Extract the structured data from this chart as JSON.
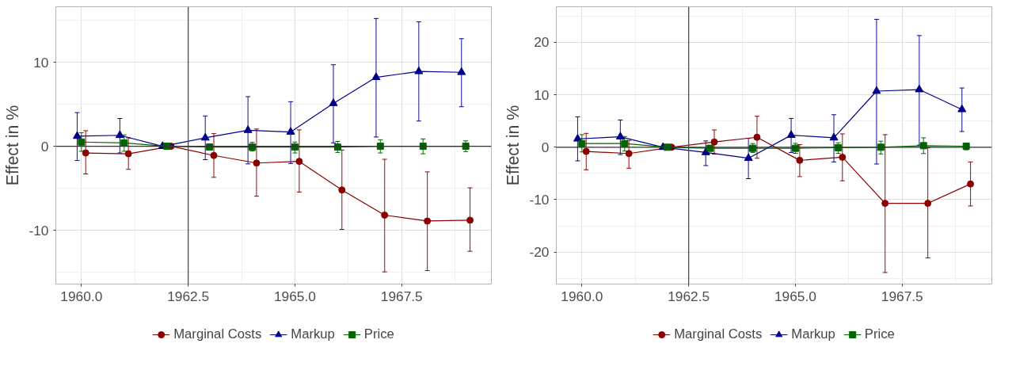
{
  "chart_data": [
    {
      "type": "line",
      "ylabel": "Effect in %",
      "xlim": [
        1959.4,
        1969.6
      ],
      "ylim": [
        -16.4,
        16.6
      ],
      "xticks": [
        {
          "value": 1960,
          "label": "1960.0"
        },
        {
          "value": 1962.5,
          "label": "1962.5"
        },
        {
          "value": 1965,
          "label": "1965.0"
        },
        {
          "value": 1967.5,
          "label": "1967.5"
        }
      ],
      "yticks": [
        -10,
        0,
        10
      ],
      "grid": true,
      "legend": "bottom",
      "line_style": "solid",
      "ref_lines": [
        {
          "axis": "x",
          "value": 1962.5,
          "color": "#4d4d4d"
        },
        {
          "axis": "y",
          "value": 0,
          "color": "#333333"
        }
      ],
      "series": [
        {
          "name": "Marginal Costs",
          "color": "#8b0000",
          "marker": "circle",
          "x": [
            1960.1,
            1961.1,
            1962.1,
            1963.1,
            1964.1,
            1965.1,
            1966.1,
            1967.1,
            1968.1,
            1969.1
          ],
          "values": [
            -0.8,
            -0.9,
            0,
            -1.1,
            -2.0,
            -1.8,
            -5.2,
            -8.2,
            -8.9,
            -8.8
          ],
          "errors": [
            [
              -3.3,
              1.85
            ],
            [
              -2.75,
              1.0
            ],
            null,
            [
              -3.7,
              1.5
            ],
            [
              -5.95,
              2.05
            ],
            [
              -5.45,
              1.95
            ],
            [
              -9.9,
              -0.45
            ],
            [
              -14.95,
              -1.55
            ],
            [
              -14.8,
              -3.05
            ],
            [
              -12.5,
              -4.95
            ]
          ]
        },
        {
          "name": "Markup",
          "color": "#00008b",
          "marker": "triangle",
          "x": [
            1959.9,
            1960.9,
            1961.9,
            1962.9,
            1963.9,
            1964.9,
            1965.9,
            1966.9,
            1967.9,
            1968.9
          ],
          "values": [
            1.2,
            1.3,
            0,
            1.0,
            1.9,
            1.7,
            5.1,
            8.2,
            8.9,
            8.8
          ],
          "errors": [
            [
              -1.7,
              4.0
            ],
            [
              -0.8,
              3.3
            ],
            null,
            [
              -1.6,
              3.6
            ],
            [
              -2.1,
              5.9
            ],
            [
              -2.05,
              5.3
            ],
            [
              0.4,
              9.7
            ],
            [
              1.1,
              15.2
            ],
            [
              3.0,
              14.8
            ],
            [
              4.7,
              12.8
            ]
          ]
        },
        {
          "name": "Price",
          "color": "#006400",
          "marker": "square",
          "x": [
            1960,
            1961,
            1962,
            1963,
            1964,
            1965,
            1966,
            1967,
            1968,
            1969
          ],
          "values": [
            0.5,
            0.4,
            0,
            -0.1,
            -0.1,
            -0.1,
            -0.1,
            0,
            0,
            0
          ],
          "errors": [
            [
              -0.6,
              1.6
            ],
            [
              -0.6,
              1.35
            ],
            null,
            [
              -0.37,
              0.1
            ],
            [
              -0.57,
              0.47
            ],
            [
              -0.8,
              0.5
            ],
            [
              -0.74,
              0.57
            ],
            [
              -0.8,
              0.77
            ],
            [
              -0.9,
              0.87
            ],
            [
              -0.64,
              0.64
            ]
          ]
        }
      ]
    },
    {
      "type": "line",
      "ylabel": "Effect in %",
      "xlim": [
        1959.4,
        1969.6
      ],
      "ylim": [
        -26.1,
        26.8
      ],
      "xticks": [
        {
          "value": 1960,
          "label": "1960.0"
        },
        {
          "value": 1962.5,
          "label": "1962.5"
        },
        {
          "value": 1965,
          "label": "1965.0"
        },
        {
          "value": 1967.5,
          "label": "1967.5"
        }
      ],
      "yticks": [
        -20,
        -10,
        0,
        10,
        20
      ],
      "grid": true,
      "legend": "bottom",
      "line_style": "solid",
      "ref_lines": [
        {
          "axis": "x",
          "value": 1962.5,
          "color": "#4d4d4d"
        },
        {
          "axis": "y",
          "value": 0,
          "color": "#333333"
        }
      ],
      "series": [
        {
          "name": "Marginal Costs",
          "color": "#8b0000",
          "marker": "circle",
          "x": [
            1960.1,
            1961.1,
            1962.1,
            1963.1,
            1964.1,
            1965.1,
            1966.1,
            1967.1,
            1968.1,
            1969.1
          ],
          "values": [
            -0.8,
            -1.2,
            0,
            1.0,
            1.9,
            -2.5,
            -1.9,
            -10.7,
            -10.7,
            -7.0
          ],
          "errors": [
            [
              -4.3,
              2.65
            ],
            [
              -4.0,
              1.3
            ],
            null,
            [
              -1.3,
              3.3
            ],
            [
              -2.1,
              5.9
            ],
            [
              -5.6,
              0.5
            ],
            [
              -6.4,
              2.55
            ],
            [
              -23.9,
              2.4
            ],
            [
              -21.1,
              -0.1
            ],
            [
              -11.2,
              -2.8
            ]
          ]
        },
        {
          "name": "Markup",
          "color": "#00008b",
          "marker": "triangle",
          "x": [
            1959.9,
            1960.9,
            1961.9,
            1962.9,
            1963.9,
            1964.9,
            1965.9,
            1966.9,
            1967.9,
            1968.9
          ],
          "values": [
            1.6,
            2.0,
            0,
            -1.0,
            -2.1,
            2.3,
            1.8,
            10.7,
            11.0,
            7.2
          ],
          "errors": [
            [
              -2.6,
              5.8
            ],
            [
              -1.4,
              5.2
            ],
            null,
            [
              -3.5,
              1.2
            ],
            [
              -6.0,
              1.7
            ],
            [
              -1.0,
              5.5
            ],
            [
              -2.8,
              6.2
            ],
            [
              -3.2,
              24.4
            ],
            [
              0.4,
              21.3
            ],
            [
              3.0,
              11.3
            ]
          ]
        },
        {
          "name": "Price",
          "color": "#006400",
          "marker": "square",
          "x": [
            1960,
            1961,
            1962,
            1963,
            1964,
            1965,
            1966,
            1967,
            1968,
            1969
          ],
          "values": [
            0.7,
            0.7,
            0,
            -0.2,
            -0.2,
            -0.2,
            -0.1,
            0,
            0.3,
            0.2
          ],
          "errors": [
            [
              -0.9,
              2.4
            ],
            [
              -0.7,
              2.05
            ],
            null,
            [
              -0.7,
              0.37
            ],
            [
              -1.0,
              0.7
            ],
            [
              -1.16,
              0.74
            ],
            [
              -1.16,
              0.85
            ],
            [
              -1.27,
              1.16
            ],
            [
              -1.2,
              1.8
            ],
            [
              -0.5,
              0.8
            ]
          ]
        }
      ]
    }
  ]
}
